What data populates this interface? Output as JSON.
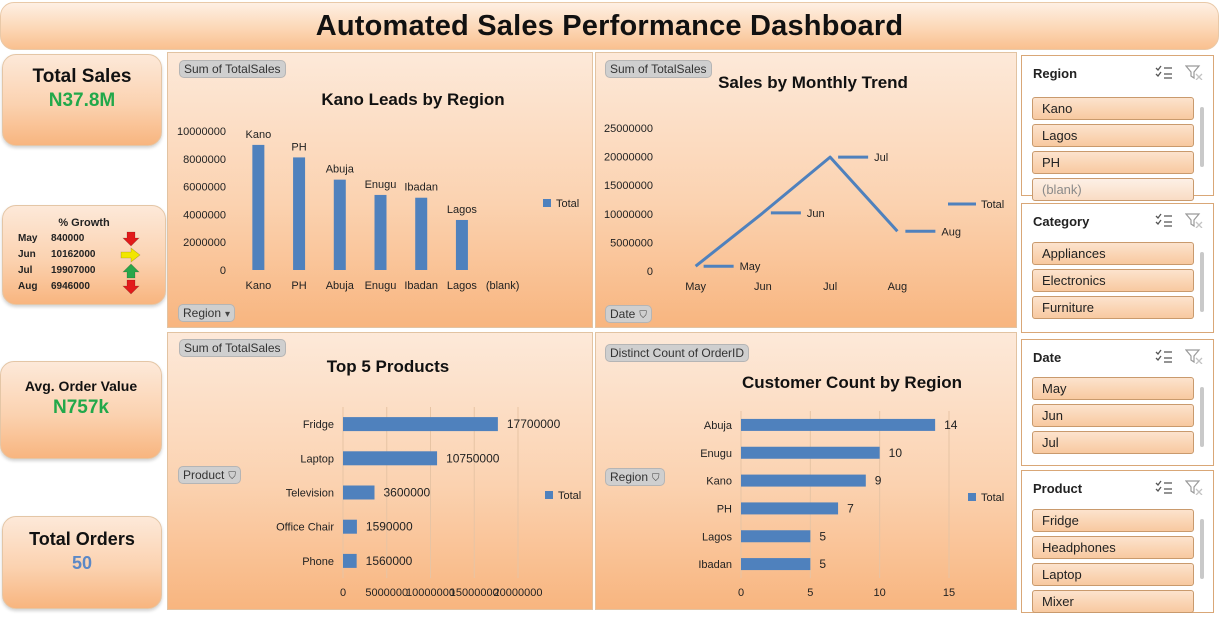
{
  "dashboard": {
    "title": "Automated Sales Performance Dashboard"
  },
  "kpis": {
    "total_sales": {
      "label": "Total Sales",
      "value": "N37.8M",
      "color": "#22a84a"
    },
    "avg_order": {
      "label": "Avg. Order Value",
      "value": "N757k",
      "color": "#22a84a"
    },
    "total_orders": {
      "label": "Total Orders",
      "value": "50",
      "color": "#5b88c6"
    }
  },
  "growth": {
    "title": "% Growth",
    "rows": [
      {
        "month": "May",
        "value": "840000",
        "arrow": "down-arrow-icon",
        "color": "#e21b1b"
      },
      {
        "month": "Jun",
        "value": "10162000",
        "arrow": "right-arrow-icon",
        "color": "#f2e600"
      },
      {
        "month": "Jul",
        "value": "19907000",
        "arrow": "up-arrow-icon",
        "color": "#29a64a"
      },
      {
        "month": "Aug",
        "value": "6946000",
        "arrow": "down-arrow-icon",
        "color": "#e21b1b"
      }
    ]
  },
  "panels": {
    "region": {
      "field_label": "Sum of TotalSales",
      "filter_label": "Region"
    },
    "monthly": {
      "field_label": "Sum of TotalSales",
      "filter_label": "Date"
    },
    "products": {
      "field_label": "Sum of TotalSales",
      "filter_label": "Product"
    },
    "customers": {
      "field_label": "Distinct Count of OrderID",
      "filter_label": "Region"
    }
  },
  "chart_data": [
    {
      "id": "region",
      "type": "bar",
      "title": "Kano Leads by Region",
      "categories": [
        "Kano",
        "PH",
        "Abuja",
        "Enugu",
        "Ibadan",
        "Lagos",
        "(blank)"
      ],
      "series": [
        {
          "name": "Total",
          "values": [
            9000000,
            8100000,
            6500000,
            5400000,
            5200000,
            3600000,
            0
          ]
        }
      ],
      "data_labels": [
        "Kano",
        "PH",
        "Abuja",
        "Enugu",
        "Ibadan",
        "Lagos",
        ""
      ],
      "ylim": [
        0,
        10000000
      ],
      "yticks": [
        0,
        2000000,
        4000000,
        6000000,
        8000000,
        10000000
      ],
      "legend": "right",
      "color": "#4f81bd"
    },
    {
      "id": "monthly",
      "type": "line",
      "title": "Sales by Monthly Trend",
      "categories": [
        "May",
        "Jun",
        "Jul",
        "Aug"
      ],
      "series": [
        {
          "name": "Total",
          "values": [
            840000,
            10162000,
            19907000,
            6946000
          ]
        }
      ],
      "data_labels": [
        "May",
        "Jun",
        "Jul",
        "Aug"
      ],
      "ylim": [
        0,
        25000000
      ],
      "yticks": [
        0,
        5000000,
        10000000,
        15000000,
        20000000,
        25000000
      ],
      "legend": "right",
      "color": "#4f81bd"
    },
    {
      "id": "products",
      "type": "bar",
      "orientation": "horizontal",
      "title": "Top 5 Products",
      "categories": [
        "Fridge",
        "Laptop",
        "Television",
        "Office Chair",
        "Phone"
      ],
      "series": [
        {
          "name": "Total",
          "values": [
            17700000,
            10750000,
            3600000,
            1590000,
            1560000
          ]
        }
      ],
      "data_labels": [
        "17700000",
        "10750000",
        "3600000",
        "1590000",
        "1560000"
      ],
      "xlim": [
        0,
        20000000
      ],
      "xticks": [
        0,
        5000000,
        10000000,
        15000000,
        20000000
      ],
      "legend": "right",
      "color": "#4f81bd"
    },
    {
      "id": "customers",
      "type": "bar",
      "orientation": "horizontal",
      "title": "Customer Count by Region",
      "categories": [
        "Abuja",
        "Enugu",
        "Kano",
        "PH",
        "Lagos",
        "Ibadan"
      ],
      "series": [
        {
          "name": "Total",
          "values": [
            14,
            10,
            9,
            7,
            5,
            5
          ]
        }
      ],
      "data_labels": [
        "14",
        "10",
        "9",
        "7",
        "5",
        "5"
      ],
      "xlim": [
        0,
        15
      ],
      "xticks": [
        0,
        5,
        10,
        15
      ],
      "legend": "right",
      "color": "#4f81bd"
    }
  ],
  "slicers": [
    {
      "title": "Region",
      "items": [
        "Kano",
        "Lagos",
        "PH",
        "(blank)"
      ]
    },
    {
      "title": "Category",
      "items": [
        "Appliances",
        "Electronics",
        "Furniture"
      ]
    },
    {
      "title": "Date",
      "items": [
        "May",
        "Jun",
        "Jul"
      ]
    },
    {
      "title": "Product",
      "items": [
        "Fridge",
        "Headphones",
        "Laptop",
        "Mixer"
      ]
    }
  ]
}
